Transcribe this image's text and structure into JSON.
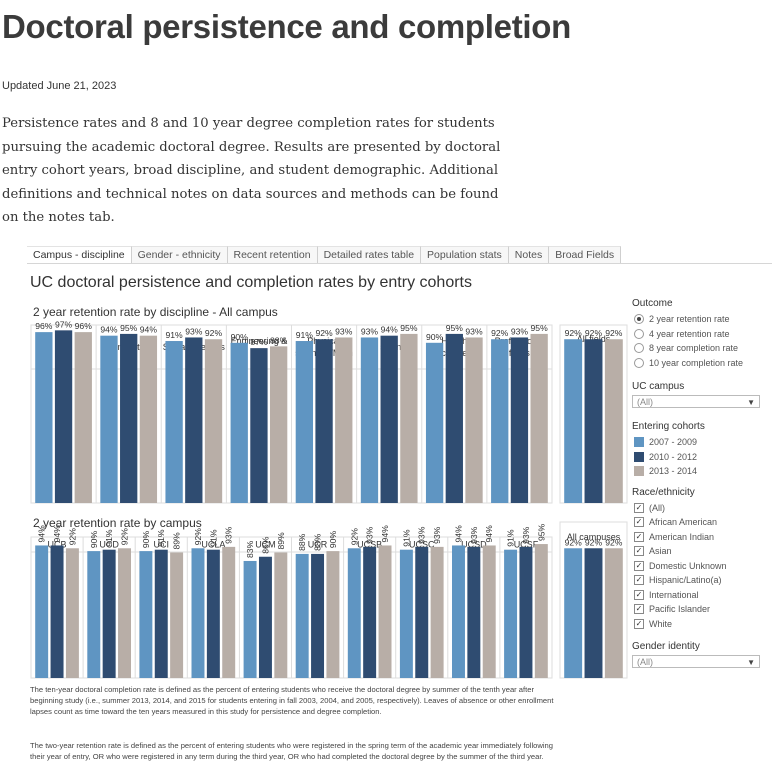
{
  "page": {
    "title": "Doctoral persistence and completion",
    "updated": "Updated June 21, 2023",
    "intro": "Persistence rates and 8 and 10 year degree completion rates for students pursuing the academic doctoral degree. Results are presented by doctoral entry cohort years, broad discipline, and student demographic. Additional definitions and technical notes on data sources and methods can be found on the notes tab."
  },
  "tabs": [
    "Campus - discipline",
    "Gender - ethnicity",
    "Recent retention",
    "Detailed rates table",
    "Population stats",
    "Notes",
    "Broad Fields"
  ],
  "dashboard_title": "UC doctoral persistence and completion rates by entry cohorts",
  "colors": {
    "c2007": "#5f95c2",
    "c2010": "#2f4c71",
    "c2013": "#b8aea7"
  },
  "chart_data": [
    {
      "type": "bar",
      "title": "2 year retention rate by discipline - All campus",
      "categories": [
        "Arts",
        "Humanities",
        "Social sciences",
        "Engineering & CS",
        "Physical sciences/Math",
        "Life sciences",
        "Health sciences",
        "Professional fields"
      ],
      "category_lines": [
        [
          "Arts"
        ],
        [
          "Humanities"
        ],
        [
          "Social sciences"
        ],
        [
          "Engineering &",
          "CS"
        ],
        [
          "Physical",
          "sciences/Math"
        ],
        [
          "Life sciences"
        ],
        [
          "Health",
          "sciences"
        ],
        [
          "Professional",
          "fields"
        ]
      ],
      "series": [
        {
          "name": "2007 - 2009",
          "values": [
            96,
            94,
            91,
            90,
            91,
            93,
            90,
            92
          ]
        },
        {
          "name": "2010 - 2012",
          "values": [
            97,
            95,
            93,
            87,
            92,
            94,
            95,
            93
          ]
        },
        {
          "name": "2013 - 2014",
          "values": [
            96,
            94,
            92,
            88,
            93,
            95,
            93,
            95
          ]
        }
      ],
      "value_format": "percent",
      "total": {
        "label": "All fields",
        "values": [
          92,
          92,
          92
        ]
      }
    },
    {
      "type": "bar",
      "title": "2 year retention rate by campus",
      "categories": [
        "UCB",
        "UCD",
        "UCI",
        "UCLA",
        "UCM",
        "UCR",
        "UCSB",
        "UCSC",
        "UCSD",
        "UCSF"
      ],
      "series": [
        {
          "name": "2007 - 2009",
          "values": [
            94,
            90,
            90,
            92,
            83,
            88,
            92,
            91,
            94,
            91
          ]
        },
        {
          "name": "2010 - 2012",
          "values": [
            94,
            91,
            91,
            91,
            86,
            88,
            93,
            93,
            93,
            93
          ]
        },
        {
          "name": "2013 - 2014",
          "values": [
            92,
            92,
            89,
            93,
            89,
            90,
            94,
            93,
            94,
            95
          ]
        }
      ],
      "value_format": "percent",
      "total": {
        "label": "All campuses",
        "values": [
          92,
          92,
          92
        ]
      }
    }
  ],
  "filters": {
    "outcome": {
      "label": "Outcome",
      "options": [
        "2 year retention rate",
        "4 year retention rate",
        "8 year completion rate",
        "10 year completion rate"
      ],
      "selected": 0
    },
    "campus": {
      "label": "UC campus",
      "value": "(All)"
    },
    "cohorts": {
      "label": "Entering cohorts",
      "items": [
        "2007 - 2009",
        "2010 - 2012",
        "2013 - 2014"
      ]
    },
    "race": {
      "label": "Race/ethnicity",
      "options": [
        "(All)",
        "African American",
        "American Indian",
        "Asian",
        "Domestic Unknown",
        "Hispanic/Latino(a)",
        "International",
        "Pacific Islander",
        "White"
      ]
    },
    "gender": {
      "label": "Gender identity",
      "value": "(All)"
    }
  },
  "footnotes": [
    "The ten-year doctoral completion rate is defined as the percent of entering students who receive the doctoral degree by summer of the tenth year after beginning study (i.e., summer 2013, 2014, and 2015 for students entering in fall 2003, 2004, and 2005, respectively). Leaves of absence or other enrollment lapses count as time toward the ten years measured in this study for persistence and degree completion.",
    "The two-year retention rate is defined as the percent of entering students who were registered in the spring term of the academic year immediately following their year of entry, OR who were registered in any term during the third year, OR who had completed the doctoral degree by the summer of the third year."
  ]
}
